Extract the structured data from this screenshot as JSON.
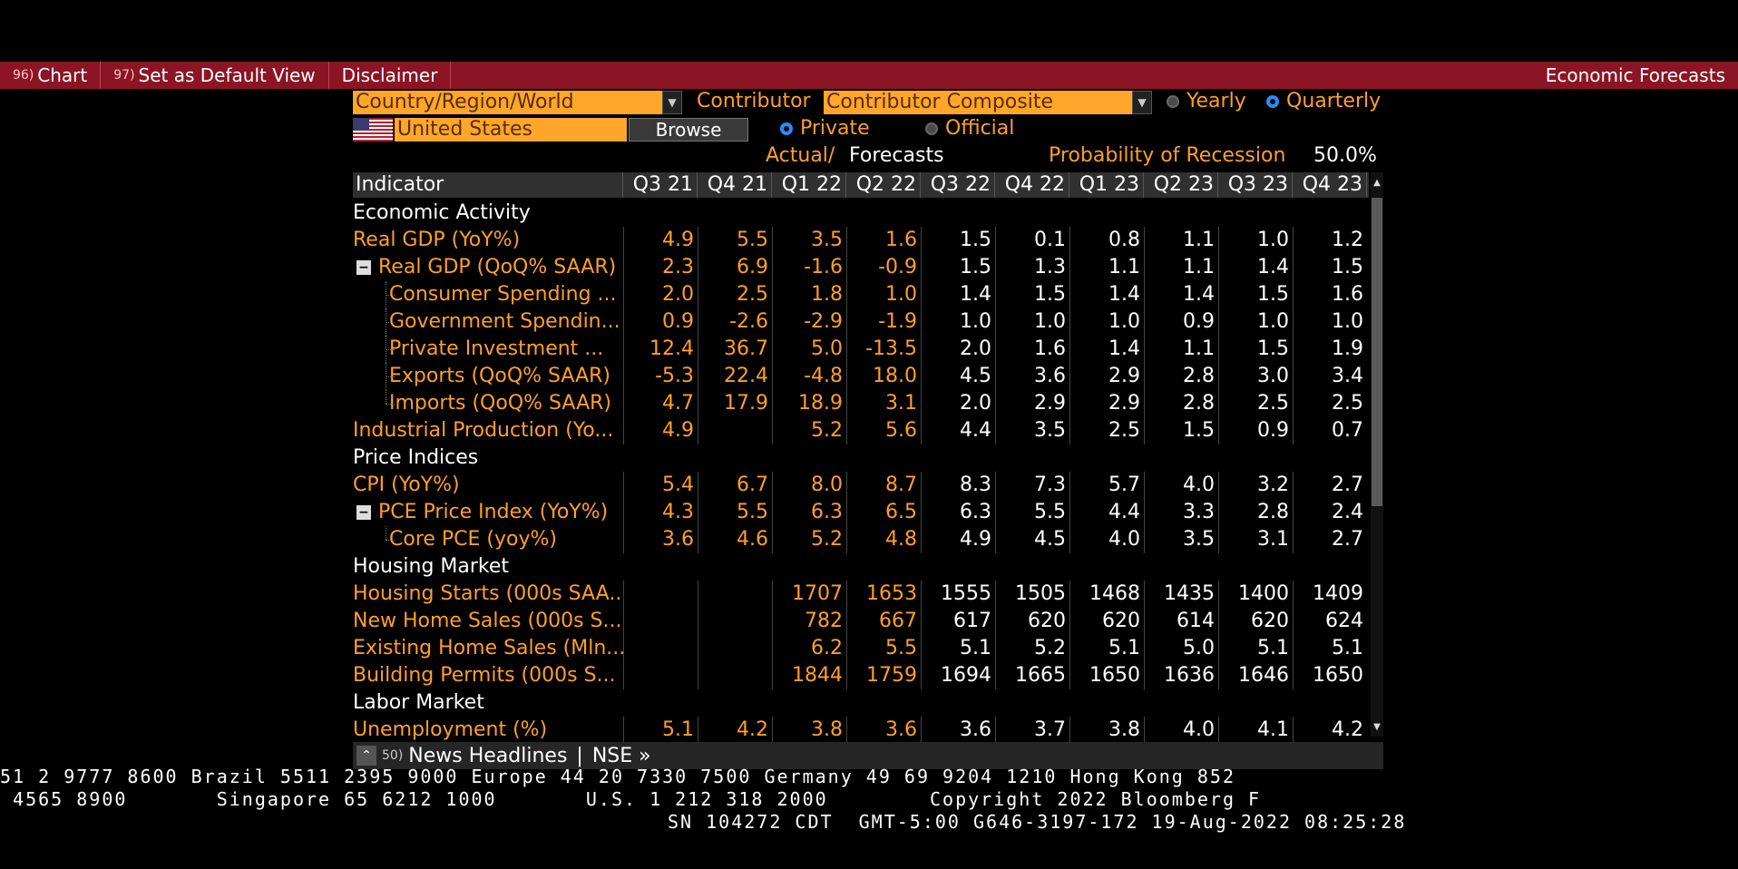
{
  "menu": {
    "chart_num": "96)",
    "chart_label": "Chart",
    "default_num": "97)",
    "default_label": "Set as Default View",
    "disclaimer_label": "Disclaimer",
    "title": "Economic Forecasts"
  },
  "controls": {
    "region_dropdown": "Country/Region/World",
    "contributor_label": "Contributor",
    "contributor_dropdown": "Contributor Composite",
    "yearly_label": "Yearly",
    "quarterly_label": "Quarterly",
    "period_selected": "Quarterly",
    "country_value": "United States",
    "browse_label": "Browse",
    "private_label": "Private",
    "official_label": "Official",
    "source_selected": "Private",
    "actual_label": "Actual/",
    "forecasts_label": "Forecasts",
    "recession_label": "Probability of Recession",
    "recession_value": "50.0%"
  },
  "table": {
    "indicator_header": "Indicator",
    "quarters": [
      "Q3 21",
      "Q4 21",
      "Q1 22",
      "Q2 22",
      "Q3 22",
      "Q4 22",
      "Q1 23",
      "Q2 23",
      "Q3 23",
      "Q4 23"
    ],
    "rows": [
      {
        "type": "section",
        "label": "Economic Activity"
      },
      {
        "type": "data",
        "label": "Real GDP (YoY%)",
        "level": 0,
        "values": [
          "4.9",
          "5.5",
          "3.5",
          "1.6",
          "1.5",
          "0.1",
          "0.8",
          "1.1",
          "1.0",
          "1.2"
        ]
      },
      {
        "type": "data",
        "label": "Real GDP (QoQ% SAAR)",
        "level": 0,
        "expander": true,
        "values": [
          "2.3",
          "6.9",
          "-1.6",
          "-0.9",
          "1.5",
          "1.3",
          "1.1",
          "1.1",
          "1.4",
          "1.5"
        ]
      },
      {
        "type": "data",
        "label": "Consumer Spending ...",
        "level": 1,
        "values": [
          "2.0",
          "2.5",
          "1.8",
          "1.0",
          "1.4",
          "1.5",
          "1.4",
          "1.4",
          "1.5",
          "1.6"
        ]
      },
      {
        "type": "data",
        "label": "Government Spendin...",
        "level": 1,
        "values": [
          "0.9",
          "-2.6",
          "-2.9",
          "-1.9",
          "1.0",
          "1.0",
          "1.0",
          "0.9",
          "1.0",
          "1.0"
        ]
      },
      {
        "type": "data",
        "label": "Private Investment ...",
        "level": 1,
        "values": [
          "12.4",
          "36.7",
          "5.0",
          "-13.5",
          "2.0",
          "1.6",
          "1.4",
          "1.1",
          "1.5",
          "1.9"
        ]
      },
      {
        "type": "data",
        "label": "Exports (QoQ% SAAR)",
        "level": 1,
        "values": [
          "-5.3",
          "22.4",
          "-4.8",
          "18.0",
          "4.5",
          "3.6",
          "2.9",
          "2.8",
          "3.0",
          "3.4"
        ]
      },
      {
        "type": "data",
        "label": "Imports (QoQ% SAAR)",
        "level": 1,
        "last": true,
        "values": [
          "4.7",
          "17.9",
          "18.9",
          "3.1",
          "2.0",
          "2.9",
          "2.9",
          "2.8",
          "2.5",
          "2.5"
        ]
      },
      {
        "type": "data",
        "label": "Industrial Production (Yo...",
        "level": 0,
        "values": [
          "4.9",
          "",
          "5.2",
          "5.6",
          "4.4",
          "3.5",
          "2.5",
          "1.5",
          "0.9",
          "0.7"
        ]
      },
      {
        "type": "section",
        "label": "Price Indices"
      },
      {
        "type": "data",
        "label": "CPI (YoY%)",
        "level": 0,
        "values": [
          "5.4",
          "6.7",
          "8.0",
          "8.7",
          "8.3",
          "7.3",
          "5.7",
          "4.0",
          "3.2",
          "2.7"
        ]
      },
      {
        "type": "data",
        "label": "PCE Price Index (YoY%)",
        "level": 0,
        "expander": true,
        "values": [
          "4.3",
          "5.5",
          "6.3",
          "6.5",
          "6.3",
          "5.5",
          "4.4",
          "3.3",
          "2.8",
          "2.4"
        ]
      },
      {
        "type": "data",
        "label": "Core PCE (yoy%)",
        "level": 1,
        "last": true,
        "values": [
          "3.6",
          "4.6",
          "5.2",
          "4.8",
          "4.9",
          "4.5",
          "4.0",
          "3.5",
          "3.1",
          "2.7"
        ]
      },
      {
        "type": "section",
        "label": "Housing Market"
      },
      {
        "type": "data",
        "label": "Housing Starts (000s SAA...",
        "level": 0,
        "values": [
          "",
          "",
          "1707",
          "1653",
          "1555",
          "1505",
          "1468",
          "1435",
          "1400",
          "1409"
        ]
      },
      {
        "type": "data",
        "label": "New Home Sales (000s S...",
        "level": 0,
        "values": [
          "",
          "",
          "782",
          "667",
          "617",
          "620",
          "620",
          "614",
          "620",
          "624"
        ]
      },
      {
        "type": "data",
        "label": "Existing Home Sales (Mln...",
        "level": 0,
        "values": [
          "",
          "",
          "6.2",
          "5.5",
          "5.1",
          "5.2",
          "5.1",
          "5.0",
          "5.1",
          "5.1"
        ]
      },
      {
        "type": "data",
        "label": "Building Permits (000s S...",
        "level": 0,
        "values": [
          "",
          "",
          "1844",
          "1759",
          "1694",
          "1665",
          "1650",
          "1636",
          "1646",
          "1650"
        ]
      },
      {
        "type": "section",
        "label": "Labor Market"
      },
      {
        "type": "data",
        "label": "Unemployment (%)",
        "level": 0,
        "values": [
          "5.1",
          "4.2",
          "3.8",
          "3.6",
          "3.6",
          "3.7",
          "3.8",
          "4.0",
          "4.1",
          "4.2"
        ]
      }
    ]
  },
  "news": {
    "num": "50)",
    "label": "News Headlines",
    "separator": "|",
    "link": "NSE »"
  },
  "ticker": {
    "line1": "51 2 9777 8600 Brazil 5511 2395 9000 Europe 44 20 7330 7500 Germany 49 69 9204 1210 Hong Kong 852",
    "line2": " 4565 8900       Singapore 65 6212 1000       U.S. 1 212 318 2000        Copyright 2022 Bloomberg F",
    "line3": "SN 104272 CDT  GMT-5:00 G646-3197-172 19-Aug-2022 08:25:28"
  }
}
